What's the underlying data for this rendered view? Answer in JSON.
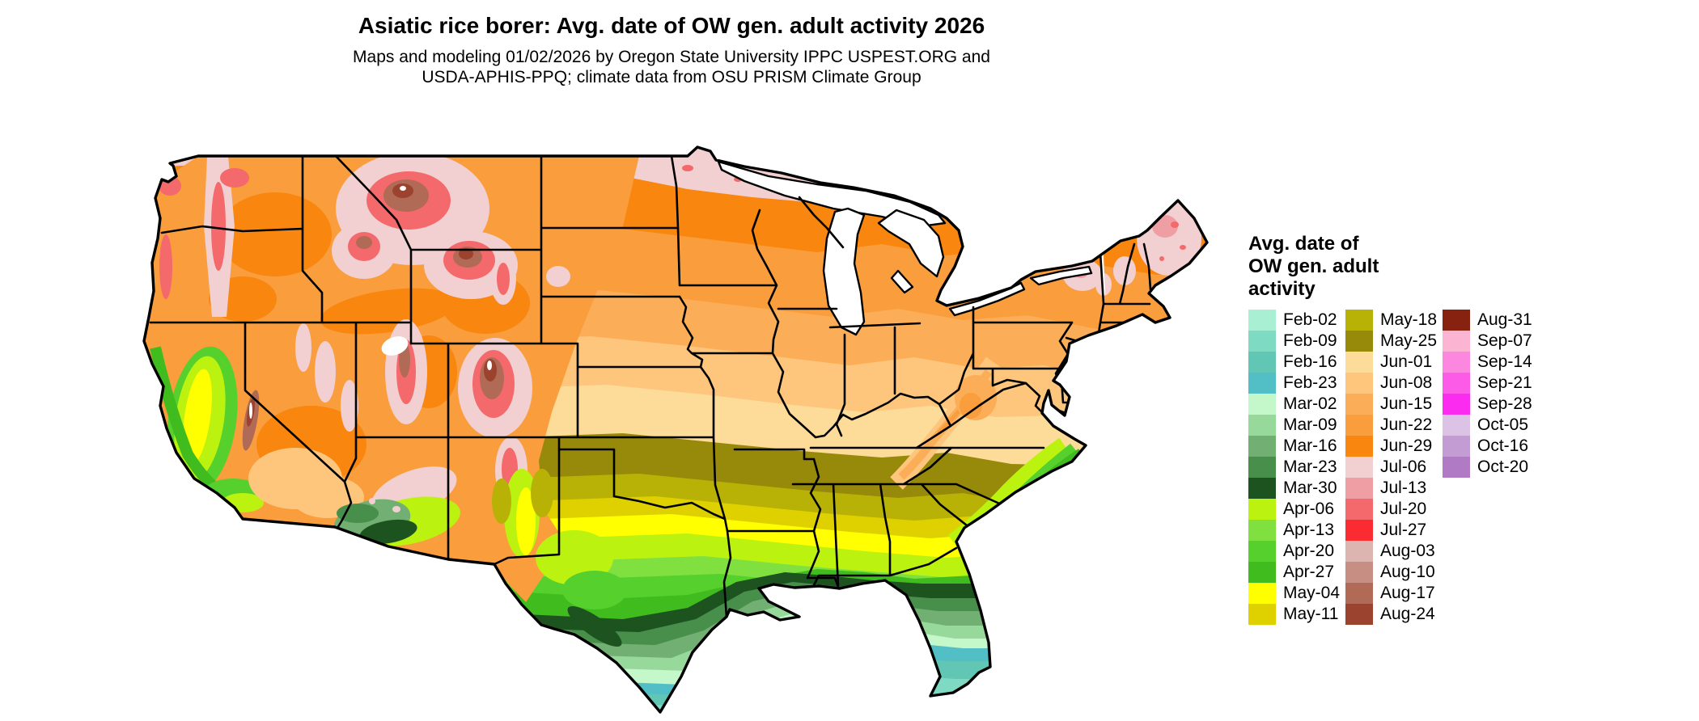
{
  "header": {
    "title": "Asiatic rice borer: Avg. date of OW gen. adult activity 2026",
    "subtitle_lines": [
      "Maps and modeling 01/02/2026 by Oregon State University IPPC USPEST.ORG and",
      "USDA-APHIS-PPQ; climate data from OSU PRISM Climate Group"
    ]
  },
  "legend": {
    "title_lines": [
      "Avg. date of",
      "OW gen. adult",
      "activity"
    ],
    "columns": [
      [
        "Feb-02",
        "Feb-09",
        "Feb-16",
        "Feb-23",
        "Mar-02",
        "Mar-09",
        "Mar-16",
        "Mar-23",
        "Mar-30",
        "Apr-06",
        "Apr-13",
        "Apr-20",
        "Apr-27",
        "May-04",
        "May-11"
      ],
      [
        "May-18",
        "May-25",
        "Jun-01",
        "Jun-08",
        "Jun-15",
        "Jun-22",
        "Jun-29",
        "Jul-06",
        "Jul-13",
        "Jul-20",
        "Jul-27",
        "Aug-03",
        "Aug-10",
        "Aug-17",
        "Aug-24"
      ],
      [
        "Aug-31",
        "Sep-07",
        "Sep-14",
        "Sep-21",
        "Sep-28",
        "Oct-05",
        "Oct-16",
        "Oct-20"
      ]
    ],
    "colors": {
      "Feb-02": "#A9EFD3",
      "Feb-09": "#7FDAC4",
      "Feb-16": "#62C6B5",
      "Feb-23": "#52BFC6",
      "Mar-02": "#C4F7C9",
      "Mar-09": "#97D99B",
      "Mar-16": "#71AF72",
      "Mar-23": "#478F4A",
      "Mar-30": "#1D531F",
      "Apr-06": "#BCF210",
      "Apr-13": "#80E040",
      "Apr-20": "#56D02C",
      "Apr-27": "#41BC1E",
      "May-04": "#FFFF00",
      "May-11": "#DFD000",
      "May-18": "#B8B207",
      "May-25": "#97890A",
      "Jun-01": "#FDDC9A",
      "Jun-08": "#FDC67C",
      "Jun-15": "#FBAD57",
      "Jun-22": "#FA9D3D",
      "Jun-29": "#F8860F",
      "Jul-06": "#F2CFD0",
      "Jul-13": "#EF9FA3",
      "Jul-20": "#F4696B",
      "Jul-27": "#FB2C31",
      "Aug-03": "#DCB4B0",
      "Aug-10": "#C78F84",
      "Aug-17": "#B06A55",
      "Aug-24": "#9B432F",
      "Aug-31": "#86220F",
      "Sep-07": "#FCB4D3",
      "Sep-14": "#FB87DF",
      "Sep-21": "#FC5BE7",
      "Sep-28": "#FB2BEF",
      "Oct-05": "#DCC3E5",
      "Oct-16": "#C29CD2",
      "Oct-20": "#B17AC5"
    }
  },
  "chart_data": {
    "type": "heatmap",
    "subtype": "choropleth-map-of-CONUS",
    "title": "Asiatic rice borer: Avg. date of OW gen. adult activity 2026",
    "legend_title": "Avg. date of OW gen. adult activity",
    "categories": [
      "Feb-02",
      "Feb-09",
      "Feb-16",
      "Feb-23",
      "Mar-02",
      "Mar-09",
      "Mar-16",
      "Mar-23",
      "Mar-30",
      "Apr-06",
      "Apr-13",
      "Apr-20",
      "Apr-27",
      "May-04",
      "May-11",
      "May-18",
      "May-25",
      "Jun-01",
      "Jun-08",
      "Jun-15",
      "Jun-22",
      "Jun-29",
      "Jul-06",
      "Jul-13",
      "Jul-20",
      "Jul-27",
      "Aug-03",
      "Aug-10",
      "Aug-17",
      "Aug-24",
      "Aug-31",
      "Sep-07",
      "Sep-14",
      "Sep-21",
      "Sep-28",
      "Oct-05",
      "Oct-16",
      "Oct-20"
    ],
    "palette": [
      "#A9EFD3",
      "#7FDAC4",
      "#62C6B5",
      "#52BFC6",
      "#C4F7C9",
      "#97D99B",
      "#71AF72",
      "#478F4A",
      "#1D531F",
      "#BCF210",
      "#80E040",
      "#56D02C",
      "#41BC1E",
      "#FFFF00",
      "#DFD000",
      "#B8B207",
      "#97890A",
      "#FDDC9A",
      "#FDC67C",
      "#FBAD57",
      "#FA9D3D",
      "#F8860F",
      "#F2CFD0",
      "#EF9FA3",
      "#F4696B",
      "#FB2C31",
      "#DCB4B0",
      "#C78F84",
      "#B06A55",
      "#9B432F",
      "#86220F",
      "#FCB4D3",
      "#FB87DF",
      "#FC5BE7",
      "#FB2BEF",
      "#DCC3E5",
      "#C29CD2",
      "#B17AC5"
    ],
    "region_readings": {
      "southern_florida_and_keys": "Feb-02 to Feb-23",
      "south_texas_tip": "Feb-16 to Mar-02",
      "gulf_coast_strip": "Mar-23 to Mar-30",
      "deep_south_TX_LA_MS_AL_GA": "Apr-06 to Apr-27",
      "OK_AR_TN_NC_band": "May-04 to May-11",
      "KS_MO_KY_VA_band": "May-18 to May-25",
      "central_plains_midwest": "Jun-01 to Jun-15",
      "northern_tier_ND_MN_WI_MI_NY_New_England": "Jun-22 to Jun-29",
      "far_north_MN_upper_MI_and_north_Maine": "Jul-06 with Jul-13/Jul-20 spots",
      "california_central_valley": "Apr-06 to May-04",
      "rocky_mountains_and_cascades": "Jul-06 to Aug-24 (higher elevations later)",
      "southern_arizona": "Mar-16 to Apr-06"
    }
  }
}
